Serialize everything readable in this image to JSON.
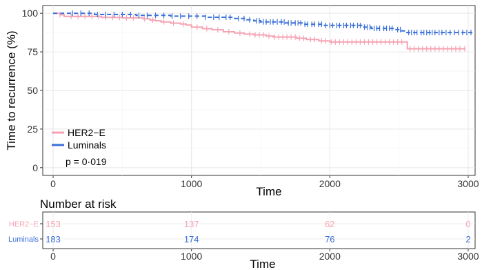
{
  "chart_data": [
    {
      "type": "line",
      "chart_kind": "kaplan-meier survival curve",
      "xlabel": "Time",
      "ylabel": "Time to recurrence (%)",
      "xlim": [
        -75,
        3050
      ],
      "ylim": [
        -5,
        105
      ],
      "x_ticks": [
        0,
        1000,
        2000,
        3000
      ],
      "y_ticks": [
        0,
        25,
        50,
        75,
        100
      ],
      "grid": true,
      "legend_position": "bottom-left",
      "annotation": "p = 0·019",
      "series": [
        {
          "name": "HER2−E",
          "color": "#f4a3b3",
          "line_style": "solid",
          "steps": [
            [
              0,
              100
            ],
            [
              50,
              99
            ],
            [
              80,
              98
            ],
            [
              350,
              97.3
            ],
            [
              500,
              97
            ],
            [
              650,
              96.4
            ],
            [
              700,
              95.6
            ],
            [
              740,
              95.1
            ],
            [
              780,
              94.4
            ],
            [
              850,
              93.6
            ],
            [
              920,
              93
            ],
            [
              960,
              92.4
            ],
            [
              1000,
              91
            ],
            [
              1080,
              90
            ],
            [
              1150,
              89.3
            ],
            [
              1230,
              88
            ],
            [
              1310,
              87.2
            ],
            [
              1380,
              86.5
            ],
            [
              1450,
              86
            ],
            [
              1540,
              85.2
            ],
            [
              1590,
              84.6
            ],
            [
              1760,
              83.8
            ],
            [
              1830,
              83
            ],
            [
              1920,
              82.1
            ],
            [
              2000,
              81.4
            ],
            [
              2550,
              81.4
            ],
            [
              2560,
              77
            ],
            [
              2980,
              77
            ]
          ],
          "censor_times": [
            50,
            130,
            180,
            230,
            280,
            330,
            380,
            430,
            480,
            530,
            580,
            660,
            720,
            800,
            870,
            940,
            1040,
            1110,
            1190,
            1270,
            1350,
            1420,
            1460,
            1490,
            1520,
            1560,
            1600,
            1630,
            1660,
            1690,
            1720,
            1750,
            1780,
            1810,
            1860,
            1890,
            1940,
            1970,
            2010,
            2040,
            2070,
            2100,
            2130,
            2160,
            2190,
            2220,
            2250,
            2280,
            2310,
            2340,
            2370,
            2400,
            2430,
            2460,
            2490,
            2520,
            2580,
            2610,
            2640,
            2670,
            2700,
            2730,
            2760,
            2790,
            2820,
            2850,
            2880,
            2910,
            2940,
            2975
          ]
        },
        {
          "name": "Luminals",
          "color": "#3a6fd8",
          "line_style": "dashed",
          "steps": [
            [
              0,
              100
            ],
            [
              300,
              99.2
            ],
            [
              600,
              98.6
            ],
            [
              850,
              98.1
            ],
            [
              1100,
              97.4
            ],
            [
              1300,
              96.6
            ],
            [
              1400,
              95.8
            ],
            [
              1450,
              95.1
            ],
            [
              1500,
              94.4
            ],
            [
              1680,
              93.7
            ],
            [
              1800,
              92.9
            ],
            [
              1950,
              92.1
            ],
            [
              2200,
              92.1
            ],
            [
              2240,
              91
            ],
            [
              2300,
              90.2
            ],
            [
              2470,
              89.4
            ],
            [
              2520,
              88.6
            ],
            [
              2550,
              87.5
            ],
            [
              3030,
              87.5
            ]
          ],
          "censor_times": [
            140,
            200,
            260,
            320,
            380,
            440,
            500,
            560,
            620,
            680,
            740,
            800,
            860,
            920,
            980,
            1040,
            1100,
            1160,
            1200,
            1250,
            1280,
            1340,
            1380,
            1420,
            1470,
            1490,
            1520,
            1540,
            1570,
            1590,
            1620,
            1650,
            1670,
            1700,
            1720,
            1750,
            1770,
            1790,
            1820,
            1840,
            1870,
            1890,
            1920,
            1940,
            1970,
            2000,
            2020,
            2050,
            2070,
            2100,
            2120,
            2150,
            2170,
            2200,
            2220,
            2250,
            2270,
            2290,
            2320,
            2340,
            2360,
            2390,
            2410,
            2430,
            2450,
            2490,
            2510,
            2570,
            2590,
            2610,
            2630,
            2660,
            2680,
            2700,
            2720,
            2740,
            2760,
            2790,
            2810,
            2840,
            2870,
            2900,
            2930,
            2960,
            2990,
            3020
          ]
        }
      ]
    },
    {
      "type": "table",
      "title": "Number at risk",
      "xlabel": "Time",
      "xlim": [
        -75,
        3050
      ],
      "x_ticks": [
        0,
        1000,
        2000,
        3000
      ],
      "time_points": [
        0,
        1000,
        2000,
        3000
      ],
      "rows": [
        {
          "label": "HER2−E",
          "color": "#f4a3b3",
          "values": [
            "153",
            "137",
            "62",
            "0"
          ]
        },
        {
          "label": "Luminals",
          "color": "#3a6fd8",
          "values": [
            "183",
            "174",
            "76",
            "2"
          ]
        }
      ]
    }
  ]
}
